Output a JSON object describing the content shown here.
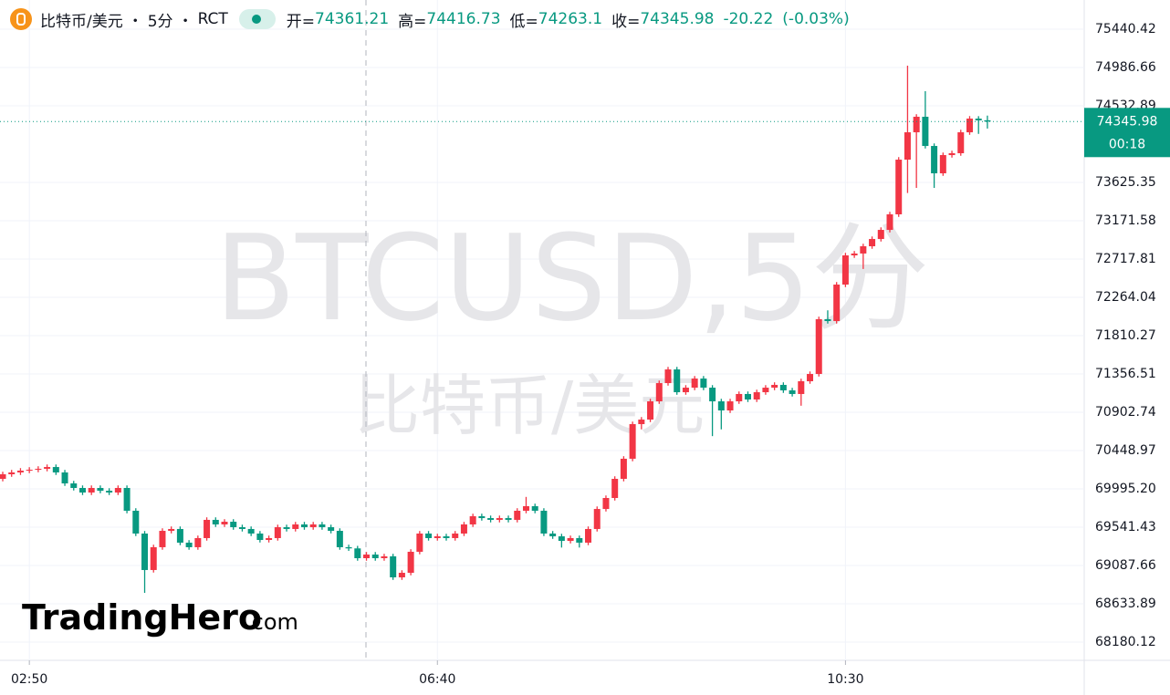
{
  "header": {
    "symbol": "比特币/美元",
    "interval": "5分",
    "source": "RCT",
    "open_label": "开=",
    "high_label": "高=",
    "low_label": "低=",
    "close_label": "收="
  },
  "watermark": {
    "line1": "BTCUSD,5分",
    "line2": "比特币/美元"
  },
  "logo": {
    "name": "TradingHero",
    "suffix": ".com"
  },
  "chart_data": {
    "type": "candlestick",
    "up_color": "#f23645",
    "down_color": "#089981",
    "grid": true,
    "change": -20.22,
    "change_percent": {
      "value": -0.03,
      "label": "(-0.03%)"
    },
    "countdown": "00:18",
    "ylim": [
      67964,
      75786
    ],
    "yticks": [
      75440.42,
      74986.66,
      74532.89,
      73625.35,
      73171.58,
      72717.81,
      72264.04,
      71810.27,
      71356.51,
      70902.74,
      70448.97,
      {
        "value": 69995.2,
        "label": "69995.20"
      },
      69541.43,
      69087.66,
      68633.89,
      68180.12
    ],
    "categories": [
      null,
      null,
      null,
      "02:50",
      null,
      null,
      null,
      null,
      null,
      null,
      null,
      null,
      null,
      null,
      null,
      null,
      null,
      null,
      null,
      null,
      null,
      null,
      null,
      null,
      null,
      null,
      null,
      null,
      null,
      null,
      null,
      null,
      null,
      null,
      null,
      null,
      null,
      null,
      null,
      null,
      null,
      null,
      null,
      null,
      null,
      null,
      null,
      null,
      null,
      "06:40",
      null,
      null,
      null,
      null,
      null,
      null,
      null,
      null,
      null,
      null,
      null,
      null,
      null,
      null,
      null,
      null,
      null,
      null,
      null,
      null,
      null,
      null,
      null,
      null,
      null,
      null,
      null,
      null,
      null,
      null,
      null,
      null,
      null,
      null,
      null,
      null,
      null,
      null,
      null,
      null,
      null,
      null,
      null,
      null,
      null,
      "10:30",
      null,
      null,
      null,
      null,
      null,
      null,
      null,
      null,
      null,
      null,
      null,
      null,
      null,
      null,
      null,
      null
    ],
    "candles": [
      [
        70114,
        70198,
        70084,
        70168
      ],
      [
        70168,
        70220,
        70138,
        70190
      ],
      [
        70190,
        70241,
        70160,
        70211
      ],
      [
        70211,
        70252,
        70181,
        70222
      ],
      [
        70222,
        70263,
        70192,
        70233
      ],
      [
        70233,
        70284,
        70203,
        70254
      ],
      [
        70254,
        70284,
        70160,
        70190
      ],
      [
        70190,
        70220,
        70030,
        70060
      ],
      [
        70060,
        70090,
        69976,
        70006
      ],
      [
        70006,
        70036,
        69922,
        69952
      ],
      [
        69952,
        70036,
        69922,
        70006
      ],
      [
        70006,
        70036,
        69943,
        69973
      ],
      [
        69973,
        70003,
        69922,
        69952
      ],
      [
        69952,
        70036,
        69922,
        70006
      ],
      [
        70006,
        70036,
        69706,
        69736
      ],
      [
        69736,
        69766,
        69436,
        69466
      ],
      [
        69466,
        69496,
        68763,
        69034
      ],
      [
        69034,
        69334,
        69004,
        69304
      ],
      [
        69304,
        69528,
        69274,
        69498
      ],
      [
        69498,
        69550,
        69468,
        69520
      ],
      [
        69520,
        69550,
        69328,
        69358
      ],
      [
        69358,
        69388,
        69274,
        69304
      ],
      [
        69304,
        69442,
        69274,
        69412
      ],
      [
        69412,
        69658,
        69382,
        69628
      ],
      [
        69628,
        69658,
        69544,
        69574
      ],
      [
        69574,
        69636,
        69544,
        69606
      ],
      [
        69606,
        69636,
        69511,
        69541
      ],
      [
        69541,
        69571,
        69490,
        69520
      ],
      [
        69520,
        69550,
        69436,
        69466
      ],
      [
        69466,
        69496,
        69360,
        69390
      ],
      [
        69390,
        69442,
        69360,
        69412
      ],
      [
        69412,
        69571,
        69382,
        69541
      ],
      [
        69541,
        69571,
        69490,
        69520
      ],
      [
        69520,
        69604,
        69490,
        69574
      ],
      [
        69574,
        69604,
        69511,
        69541
      ],
      [
        69541,
        69604,
        69511,
        69574
      ],
      [
        69574,
        69604,
        69511,
        69541
      ],
      [
        69541,
        69571,
        69468,
        69498
      ],
      [
        69498,
        69528,
        69274,
        69304
      ],
      [
        69304,
        69334,
        69260,
        69290
      ],
      [
        69290,
        69320,
        69144,
        69174
      ],
      [
        69174,
        69247,
        69144,
        69217
      ],
      [
        69217,
        69247,
        69144,
        69174
      ],
      [
        69174,
        69226,
        69144,
        69196
      ],
      [
        69196,
        69226,
        68917,
        68947
      ],
      [
        68947,
        69031,
        68917,
        69001
      ],
      [
        69001,
        69280,
        68971,
        69250
      ],
      [
        69250,
        69496,
        69220,
        69466
      ],
      [
        69466,
        69496,
        69382,
        69412
      ],
      [
        69412,
        69463,
        69382,
        69433
      ],
      [
        69433,
        69463,
        69382,
        69412
      ],
      [
        69412,
        69496,
        69382,
        69466
      ],
      [
        69466,
        69604,
        69436,
        69574
      ],
      [
        69574,
        69701,
        69544,
        69671
      ],
      [
        69671,
        69701,
        69619,
        69649
      ],
      [
        69649,
        69679,
        69598,
        69628
      ],
      [
        69628,
        69679,
        69598,
        69649
      ],
      [
        69649,
        69679,
        69598,
        69628
      ],
      [
        69628,
        69766,
        69598,
        69736
      ],
      [
        69736,
        69900,
        69706,
        69790
      ],
      [
        69790,
        69820,
        69706,
        69736
      ],
      [
        69736,
        69766,
        69436,
        69466
      ],
      [
        69466,
        69496,
        69403,
        69433
      ],
      [
        69433,
        69463,
        69300,
        69379
      ],
      [
        69379,
        69442,
        69349,
        69412
      ],
      [
        69412,
        69442,
        69300,
        69358
      ],
      [
        69358,
        69550,
        69328,
        69520
      ],
      [
        69520,
        69787,
        69490,
        69757
      ],
      [
        69757,
        69917,
        69727,
        69887
      ],
      [
        69887,
        70144,
        69857,
        70114
      ],
      [
        70114,
        70382,
        70084,
        70352
      ],
      [
        70352,
        70792,
        70322,
        70762
      ],
      [
        70762,
        70846,
        70700,
        70816
      ],
      [
        70816,
        71062,
        70786,
        71032
      ],
      [
        71032,
        71278,
        71002,
        71248
      ],
      [
        71248,
        71440,
        71218,
        71410
      ],
      [
        71410,
        71440,
        71110,
        71140
      ],
      [
        71140,
        71224,
        71110,
        71194
      ],
      [
        71194,
        71332,
        71164,
        71302
      ],
      [
        71302,
        71332,
        71164,
        71194
      ],
      [
        71194,
        71224,
        70620,
        71032
      ],
      [
        71032,
        71062,
        70700,
        70924
      ],
      [
        70924,
        71062,
        70894,
        71032
      ],
      [
        71032,
        71149,
        71002,
        71119
      ],
      [
        71119,
        71149,
        71024,
        71054
      ],
      [
        71054,
        71170,
        71024,
        71140
      ],
      [
        71140,
        71224,
        71110,
        71194
      ],
      [
        71194,
        71257,
        71164,
        71227
      ],
      [
        71227,
        71257,
        71132,
        71162
      ],
      [
        71162,
        71192,
        71089,
        71119
      ],
      [
        71119,
        71300,
        70980,
        71270
      ],
      [
        71270,
        71386,
        71240,
        71356
      ],
      [
        71356,
        72035,
        71326,
        72005
      ],
      [
        72005,
        72110,
        71953,
        71983
      ],
      [
        71983,
        72445,
        71953,
        72415
      ],
      [
        72415,
        72791,
        72385,
        72761
      ],
      [
        72761,
        72813,
        72731,
        72783
      ],
      [
        72783,
        72899,
        72600,
        72869
      ],
      [
        72869,
        72985,
        72839,
        72955
      ],
      [
        72955,
        73093,
        72925,
        73063
      ],
      [
        73063,
        73277,
        73033,
        73247
      ],
      [
        73247,
        73925,
        73217,
        73895
      ],
      [
        73895,
        75008,
        73500,
        74219
      ],
      [
        74219,
        74433,
        73560,
        74403
      ],
      [
        74403,
        74706,
        74027,
        74057
      ],
      [
        74057,
        74087,
        73560,
        73733
      ],
      [
        73733,
        73979,
        73703,
        73949
      ],
      [
        73949,
        74001,
        73919,
        73971
      ],
      [
        73971,
        74249,
        73941,
        74219
      ],
      [
        74219,
        74411,
        74189,
        74381
      ],
      [
        74381,
        74410,
        74200,
        74360
      ],
      [
        74361.21,
        74416.73,
        74263.1,
        74345.98
      ]
    ]
  }
}
